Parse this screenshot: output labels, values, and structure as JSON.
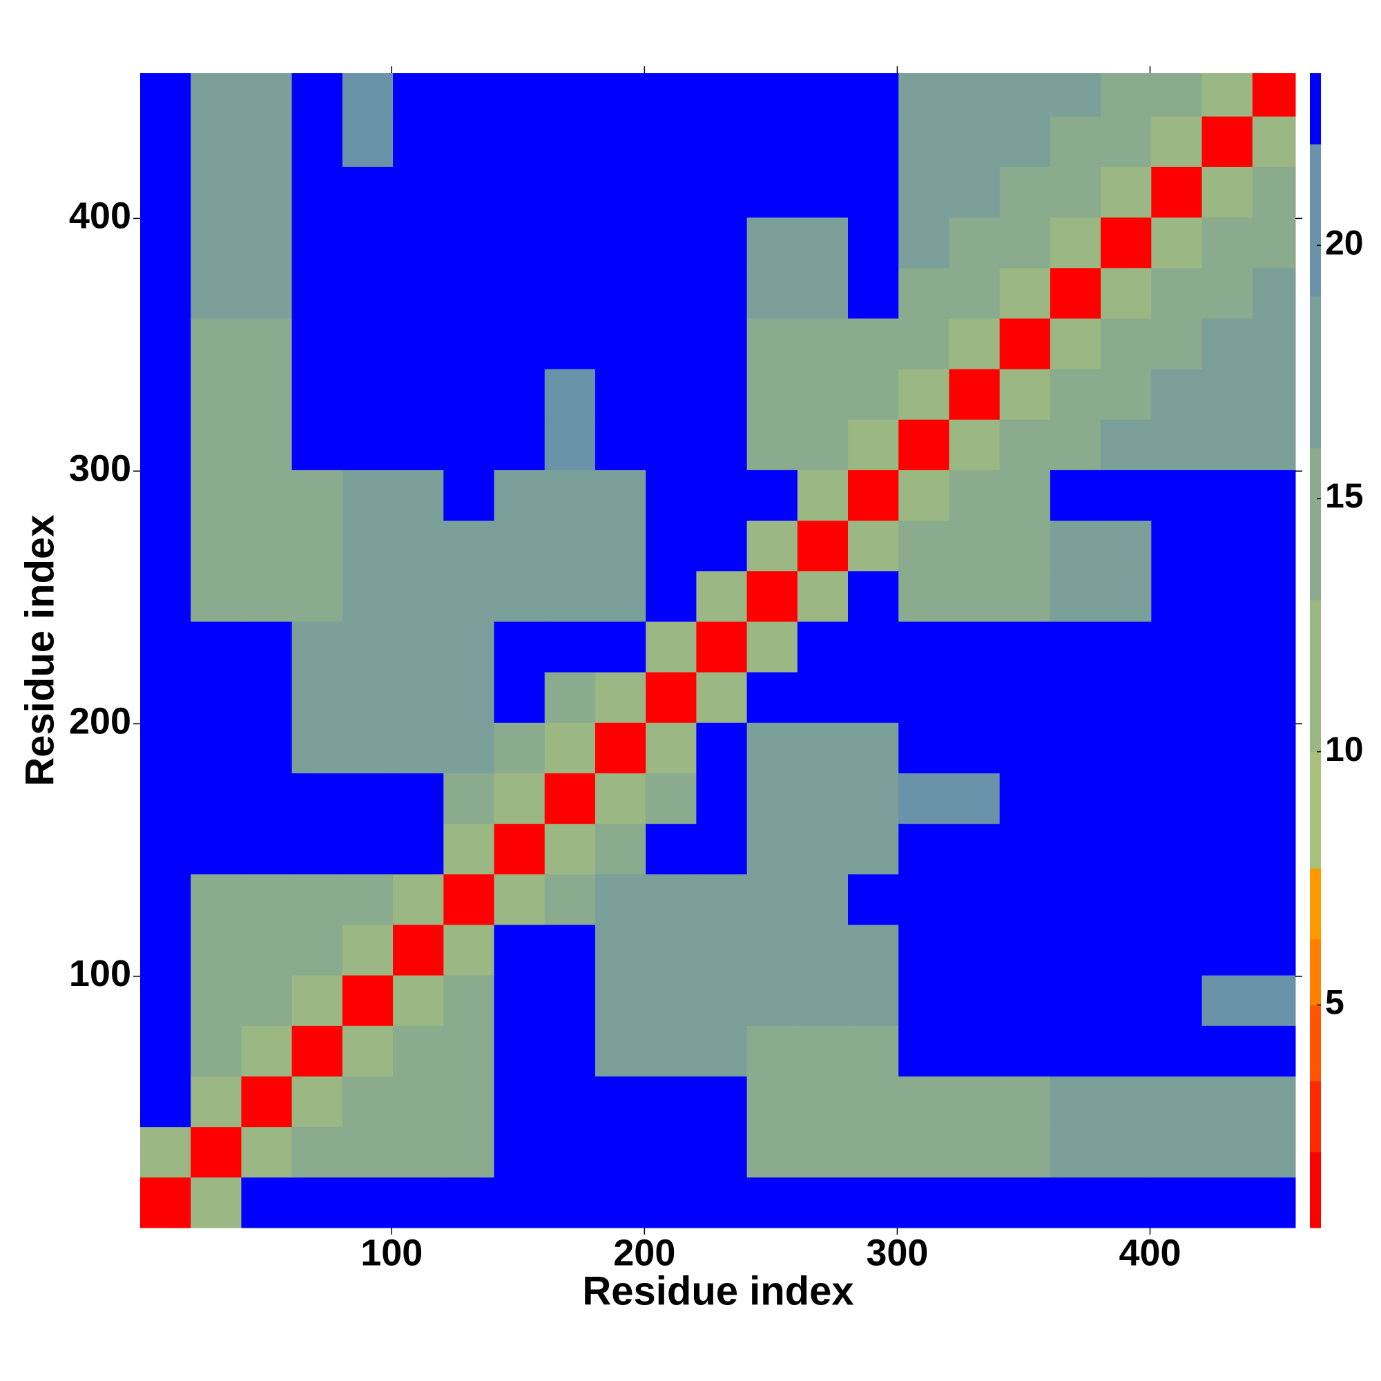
{
  "chart_data": {
    "type": "heatmap",
    "xlabel": "Residue index",
    "ylabel": "Residue index",
    "xlim": [
      0.5,
      457.5
    ],
    "ylim": [
      0.5,
      457.5
    ],
    "xticks": [
      100,
      200,
      300,
      400
    ],
    "yticks": [
      100,
      200,
      300,
      400
    ],
    "bins": [
      0.5,
      20.5,
      40.5,
      60.5,
      80.5,
      100.5,
      120.5,
      140.5,
      160.5,
      180.5,
      200.5,
      220.5,
      240.5,
      260.5,
      280.5,
      300.5,
      320.5,
      340.5,
      360.5,
      380.5,
      400.5,
      420.5,
      440.5,
      457.5
    ],
    "values": [
      [
        2,
        10,
        23,
        23,
        23,
        23,
        23,
        23,
        23,
        23,
        23,
        23,
        23,
        23,
        23,
        23,
        23,
        23,
        23,
        23,
        23,
        23,
        23
      ],
      [
        10,
        2,
        10,
        14,
        14,
        14,
        14,
        23,
        23,
        23,
        23,
        23,
        13,
        13,
        13,
        15,
        15,
        15,
        16,
        16,
        16,
        16,
        16
      ],
      [
        23,
        10,
        2,
        10,
        14,
        14,
        14,
        23,
        23,
        23,
        23,
        23,
        13,
        13,
        13,
        15,
        15,
        15,
        16,
        16,
        16,
        16,
        16
      ],
      [
        23,
        14,
        10,
        2,
        10,
        14,
        14,
        23,
        23,
        17,
        17,
        17,
        13,
        13,
        13,
        23,
        23,
        23,
        23,
        23,
        23,
        23,
        23
      ],
      [
        23,
        14,
        14,
        10,
        2,
        10,
        14,
        23,
        23,
        17,
        17,
        17,
        17,
        17,
        18,
        23,
        23,
        23,
        23,
        23,
        23,
        19,
        19
      ],
      [
        23,
        14,
        14,
        14,
        10,
        2,
        10,
        23,
        23,
        16,
        16,
        17,
        17,
        17,
        18,
        23,
        23,
        23,
        23,
        23,
        23,
        23,
        23
      ],
      [
        23,
        14,
        14,
        14,
        14,
        10,
        2,
        10,
        14,
        17,
        17,
        16,
        17,
        17,
        23,
        23,
        23,
        23,
        23,
        23,
        23,
        23,
        23
      ],
      [
        23,
        23,
        23,
        23,
        23,
        23,
        10,
        2,
        10,
        14,
        23,
        23,
        17,
        17,
        17,
        23,
        23,
        23,
        23,
        23,
        23,
        23,
        23
      ],
      [
        23,
        23,
        23,
        23,
        23,
        23,
        14,
        10,
        2,
        10,
        14,
        23,
        17,
        17,
        17,
        19,
        19,
        23,
        23,
        23,
        23,
        23,
        23
      ],
      [
        23,
        23,
        23,
        17,
        17,
        16,
        17,
        14,
        10,
        2,
        10,
        23,
        17,
        17,
        17,
        23,
        23,
        23,
        23,
        23,
        23,
        23,
        23
      ],
      [
        23,
        23,
        23,
        17,
        17,
        16,
        17,
        23,
        14,
        10,
        2,
        10,
        23,
        23,
        23,
        23,
        23,
        23,
        23,
        23,
        23,
        23,
        23
      ],
      [
        23,
        23,
        23,
        17,
        17,
        17,
        16,
        23,
        23,
        23,
        10,
        2,
        10,
        23,
        23,
        23,
        23,
        23,
        23,
        23,
        23,
        23,
        23
      ],
      [
        23,
        13,
        13,
        13,
        17,
        17,
        17,
        17,
        17,
        17,
        23,
        10,
        2,
        10,
        23,
        14,
        14,
        14,
        17,
        17,
        23,
        23,
        23
      ],
      [
        23,
        13,
        13,
        13,
        17,
        17,
        17,
        17,
        17,
        17,
        23,
        23,
        10,
        2,
        10,
        14,
        14,
        14,
        17,
        17,
        23,
        23,
        23
      ],
      [
        23,
        13,
        13,
        13,
        18,
        18,
        23,
        17,
        17,
        17,
        23,
        23,
        23,
        10,
        2,
        10,
        14,
        14,
        23,
        23,
        23,
        23,
        23
      ],
      [
        23,
        15,
        15,
        23,
        23,
        23,
        23,
        23,
        19,
        23,
        23,
        23,
        14,
        14,
        10,
        2,
        10,
        14,
        14,
        17,
        17,
        17,
        17
      ],
      [
        23,
        15,
        15,
        23,
        23,
        23,
        23,
        23,
        19,
        23,
        23,
        23,
        14,
        14,
        14,
        10,
        2,
        10,
        14,
        14,
        17,
        17,
        17
      ],
      [
        23,
        15,
        15,
        23,
        23,
        23,
        23,
        23,
        23,
        23,
        23,
        23,
        14,
        14,
        14,
        14,
        10,
        2,
        10,
        14,
        14,
        17,
        17
      ],
      [
        23,
        16,
        16,
        23,
        23,
        23,
        23,
        23,
        23,
        23,
        23,
        23,
        17,
        17,
        23,
        14,
        14,
        10,
        2,
        10,
        14,
        14,
        17
      ],
      [
        23,
        16,
        16,
        23,
        23,
        23,
        23,
        23,
        23,
        23,
        23,
        23,
        17,
        17,
        23,
        17,
        14,
        14,
        10,
        2,
        10,
        14,
        14
      ],
      [
        23,
        16,
        16,
        23,
        23,
        23,
        23,
        23,
        23,
        23,
        23,
        23,
        23,
        23,
        23,
        17,
        17,
        14,
        14,
        10,
        2,
        10,
        14
      ],
      [
        23,
        16,
        16,
        23,
        19,
        23,
        23,
        23,
        23,
        23,
        23,
        23,
        23,
        23,
        23,
        17,
        17,
        17,
        14,
        14,
        10,
        2,
        10
      ],
      [
        23,
        16,
        16,
        23,
        19,
        23,
        23,
        23,
        23,
        23,
        23,
        23,
        23,
        23,
        23,
        17,
        17,
        17,
        17,
        14,
        14,
        10,
        2
      ]
    ],
    "colorbar": {
      "ylim": [
        0.6,
        23.4
      ],
      "yticks": [
        5,
        10,
        15,
        20
      ],
      "bounds": [
        0.6,
        2.1,
        3.5,
        5,
        6.3,
        7.7,
        10,
        13,
        16,
        19,
        22,
        23.4
      ],
      "colors": [
        "#ff0000",
        "#ff2a00",
        "#ff5500",
        "#ff7f00",
        "#ff9900",
        "#a9c07c",
        "#9bb783",
        "#8aab8d",
        "#7b9f99",
        "#6a93a9",
        "#0000ff"
      ]
    }
  }
}
